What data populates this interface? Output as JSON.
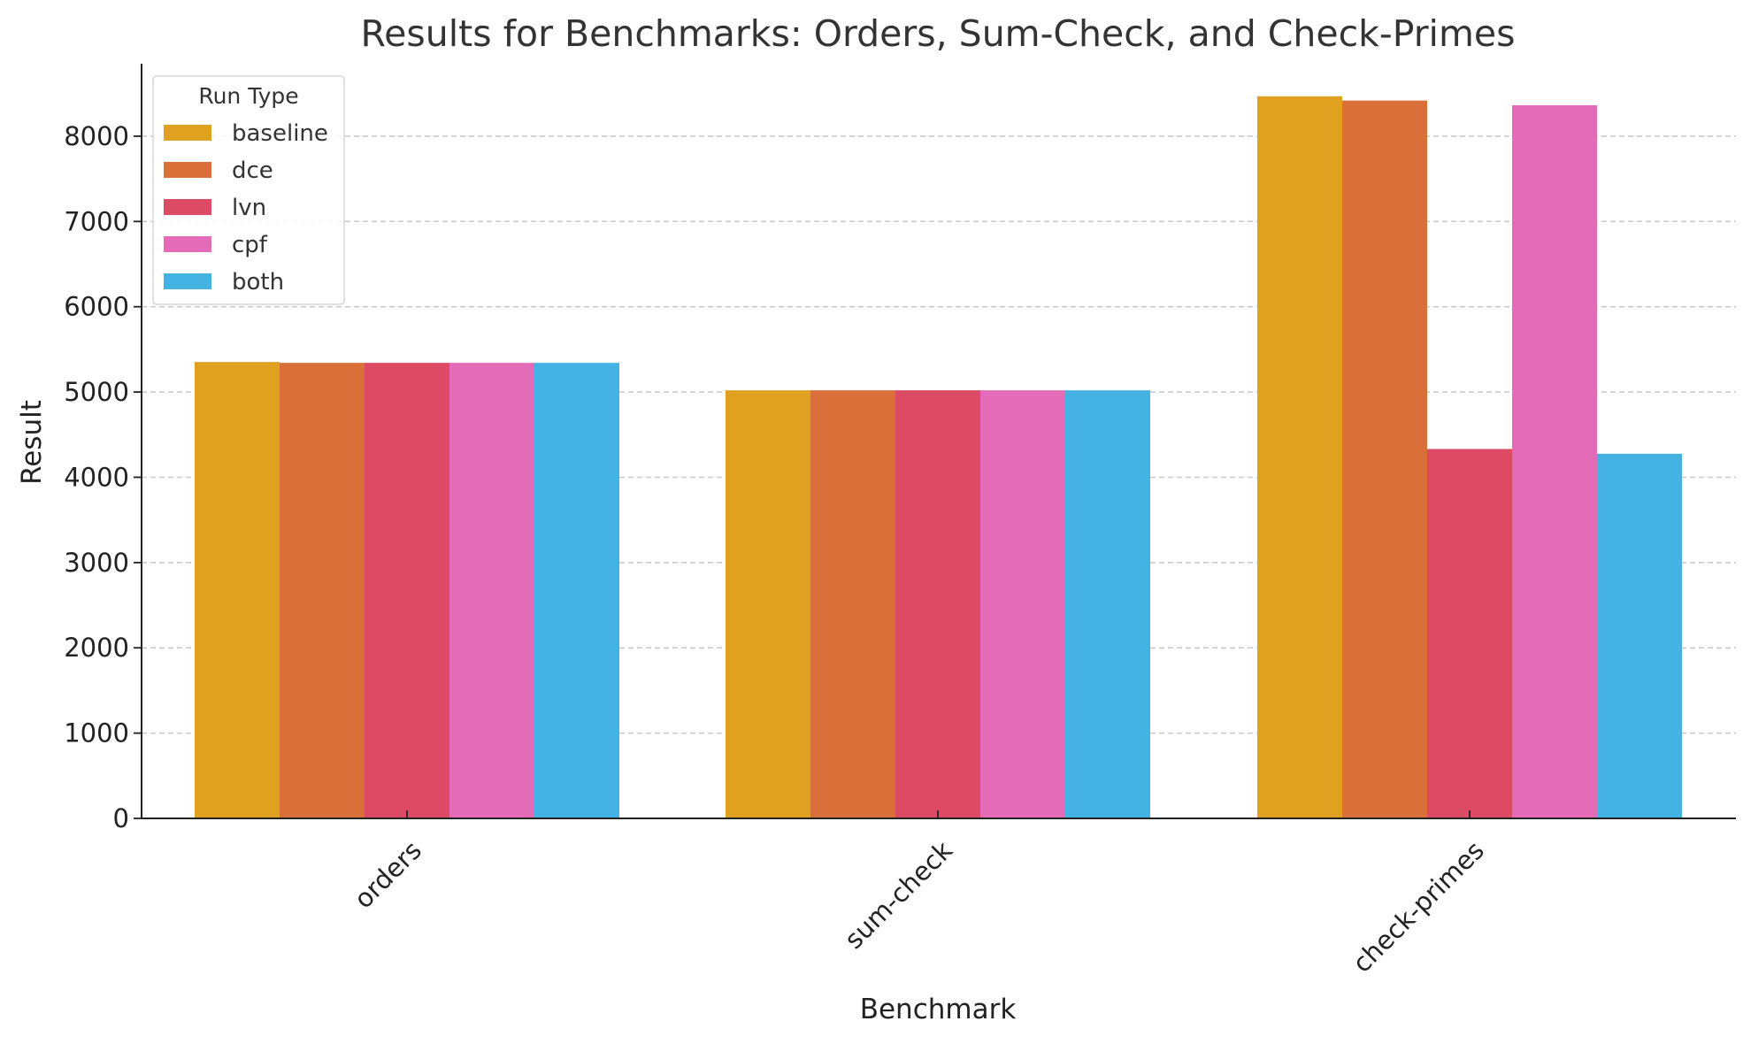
{
  "chart_data": {
    "type": "bar",
    "title": "Results for Benchmarks: Orders, Sum-Check, and Check-Primes",
    "xlabel": "Benchmark",
    "ylabel": "Result",
    "categories": [
      "orders",
      "sum-check",
      "check-primes"
    ],
    "series": [
      {
        "name": "baseline",
        "color": "#E0A020",
        "values": [
          5352,
          5020,
          8468
        ]
      },
      {
        "name": "dce",
        "color": "#DB6F39",
        "values": [
          5342,
          5020,
          8418
        ]
      },
      {
        "name": "lvn",
        "color": "#DD4A63",
        "values": [
          5342,
          5020,
          4332
        ]
      },
      {
        "name": "cpf",
        "color": "#E36BB8",
        "values": [
          5342,
          5020,
          8363
        ]
      },
      {
        "name": "both",
        "color": "#44B3E3",
        "values": [
          5342,
          5020,
          4276
        ]
      }
    ],
    "ylim": [
      0,
      8850
    ],
    "yticks": [
      0,
      1000,
      2000,
      3000,
      4000,
      5000,
      6000,
      7000,
      8000
    ],
    "grid": "y-dashed",
    "legend": {
      "title": "Run Type",
      "placement": "top-left"
    },
    "x_tick_rotation": "45"
  }
}
